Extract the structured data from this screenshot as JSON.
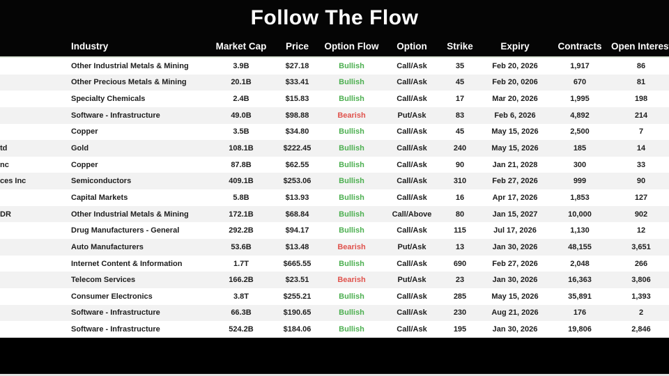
{
  "title": "Follow The Flow",
  "colors": {
    "bullish": "#4caf50",
    "bearish": "#e0534d",
    "header_bg": "#000000",
    "row_alt": "#f2f2f2"
  },
  "columns": {
    "name": "",
    "industry": "Industry",
    "market_cap": "Market Cap",
    "price": "Price",
    "option_flow": "Option Flow",
    "option": "Option",
    "strike": "Strike",
    "expiry": "Expiry",
    "contracts": "Contracts",
    "open_interest": "Open Interest"
  },
  "rows": [
    {
      "name_fragment": "",
      "industry": "Other Industrial Metals & Mining",
      "market_cap": "3.9B",
      "price": "$27.18",
      "flow": "Bullish",
      "flow_type": "bullish",
      "option": "Call/Ask",
      "strike": "35",
      "expiry": "Feb 20, 2026",
      "contracts": "1,917",
      "open_interest": "86"
    },
    {
      "name_fragment": "",
      "industry": "Other Precious Metals & Mining",
      "market_cap": "20.1B",
      "price": "$33.41",
      "flow": "Bullish",
      "flow_type": "bullish",
      "option": "Call/Ask",
      "strike": "45",
      "expiry": "Feb 20, 0206",
      "contracts": "670",
      "open_interest": "81"
    },
    {
      "name_fragment": "",
      "industry": "Specialty Chemicals",
      "market_cap": "2.4B",
      "price": "$15.83",
      "flow": "Bullish",
      "flow_type": "bullish",
      "option": "Call/Ask",
      "strike": "17",
      "expiry": "Mar 20, 2026",
      "contracts": "1,995",
      "open_interest": "198"
    },
    {
      "name_fragment": "",
      "industry": "Software - Infrastructure",
      "market_cap": "49.0B",
      "price": "$98.88",
      "flow": "Bearish",
      "flow_type": "bearish",
      "option": "Put/Ask",
      "strike": "83",
      "expiry": "Feb 6, 2026",
      "contracts": "4,892",
      "open_interest": "214"
    },
    {
      "name_fragment": "",
      "industry": "Copper",
      "market_cap": "3.5B",
      "price": "$34.80",
      "flow": "Bullish",
      "flow_type": "bullish",
      "option": "Call/Ask",
      "strike": "45",
      "expiry": "May 15, 2026",
      "contracts": "2,500",
      "open_interest": "7"
    },
    {
      "name_fragment": "td",
      "industry": "Gold",
      "market_cap": "108.1B",
      "price": "$222.45",
      "flow": "Bullish",
      "flow_type": "bullish",
      "option": "Call/Ask",
      "strike": "240",
      "expiry": "May 15, 2026",
      "contracts": "185",
      "open_interest": "14"
    },
    {
      "name_fragment": "nc",
      "industry": "Copper",
      "market_cap": "87.8B",
      "price": "$62.55",
      "flow": "Bullish",
      "flow_type": "bullish",
      "option": "Call/Ask",
      "strike": "90",
      "expiry": "Jan 21, 2028",
      "contracts": "300",
      "open_interest": "33"
    },
    {
      "name_fragment": "ces Inc",
      "industry": "Semiconductors",
      "market_cap": "409.1B",
      "price": "$253.06",
      "flow": "Bullish",
      "flow_type": "bullish",
      "option": "Call/Ask",
      "strike": "310",
      "expiry": "Feb 27, 2026",
      "contracts": "999",
      "open_interest": "90"
    },
    {
      "name_fragment": "",
      "industry": "Capital Markets",
      "market_cap": "5.8B",
      "price": "$13.93",
      "flow": "Bullish",
      "flow_type": "bullish",
      "option": "Call/Ask",
      "strike": "16",
      "expiry": "Apr 17, 2026",
      "contracts": "1,853",
      "open_interest": "127"
    },
    {
      "name_fragment": "DR",
      "industry": "Other Industrial Metals & Mining",
      "market_cap": "172.1B",
      "price": "$68.84",
      "flow": "Bullish",
      "flow_type": "bullish",
      "option": "Call/Above",
      "strike": "80",
      "expiry": "Jan 15, 2027",
      "contracts": "10,000",
      "open_interest": "902"
    },
    {
      "name_fragment": "",
      "industry": "Drug Manufacturers - General",
      "market_cap": "292.2B",
      "price": "$94.17",
      "flow": "Bullish",
      "flow_type": "bullish",
      "option": "Call/Ask",
      "strike": "115",
      "expiry": "Jul 17, 2026",
      "contracts": "1,130",
      "open_interest": "12"
    },
    {
      "name_fragment": "",
      "industry": "Auto Manufacturers",
      "market_cap": "53.6B",
      "price": "$13.48",
      "flow": "Bearish",
      "flow_type": "bearish",
      "option": "Put/Ask",
      "strike": "13",
      "expiry": "Jan 30, 2026",
      "contracts": "48,155",
      "open_interest": "3,651"
    },
    {
      "name_fragment": "",
      "industry": "Internet Content & Information",
      "market_cap": "1.7T",
      "price": "$665.55",
      "flow": "Bullish",
      "flow_type": "bullish",
      "option": "Call/Ask",
      "strike": "690",
      "expiry": "Feb 27, 2026",
      "contracts": "2,048",
      "open_interest": "266"
    },
    {
      "name_fragment": "",
      "industry": "Telecom Services",
      "market_cap": "166.2B",
      "price": "$23.51",
      "flow": "Bearish",
      "flow_type": "bearish",
      "option": "Put/Ask",
      "strike": "23",
      "expiry": "Jan 30, 2026",
      "contracts": "16,363",
      "open_interest": "3,806"
    },
    {
      "name_fragment": "",
      "industry": "Consumer Electronics",
      "market_cap": "3.8T",
      "price": "$255.21",
      "flow": "Bullish",
      "flow_type": "bullish",
      "option": "Call/Ask",
      "strike": "285",
      "expiry": "May 15, 2026",
      "contracts": "35,891",
      "open_interest": "1,393"
    },
    {
      "name_fragment": "",
      "industry": "Software - Infrastructure",
      "market_cap": "66.3B",
      "price": "$190.65",
      "flow": "Bullish",
      "flow_type": "bullish",
      "option": "Call/Ask",
      "strike": "230",
      "expiry": "Aug 21, 2026",
      "contracts": "176",
      "open_interest": "2"
    },
    {
      "name_fragment": "",
      "industry": "Software - Infrastructure",
      "market_cap": "524.2B",
      "price": "$184.06",
      "flow": "Bullish",
      "flow_type": "bullish",
      "option": "Call/Ask",
      "strike": "195",
      "expiry": "Jan 30, 2026",
      "contracts": "19,806",
      "open_interest": "2,846"
    }
  ]
}
